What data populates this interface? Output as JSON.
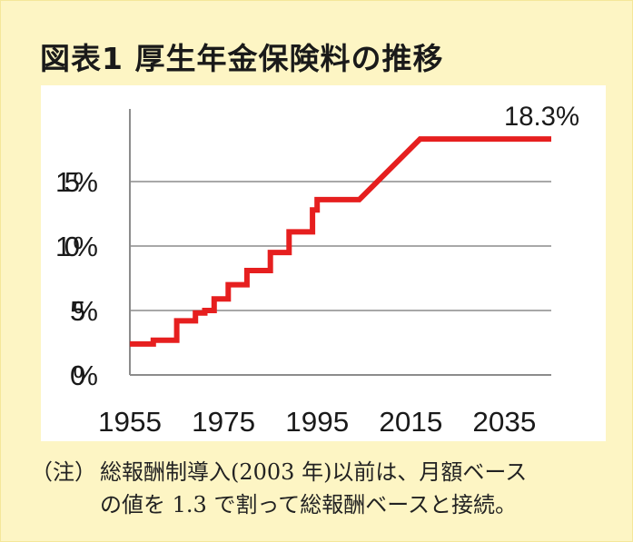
{
  "title": "図表1 厚生年金保険料の推移",
  "note": {
    "label": "（注）",
    "line1": "総報酬制導入(2003 年)以前は、月額ベース",
    "line2": "の値を 1.3 で割って総報酬ベースと接続。"
  },
  "colors": {
    "line": "#e61f1f",
    "grid": "#8c8c8c",
    "background": "#fdf5c4",
    "plot": "#ffffff"
  },
  "chart_data": {
    "type": "line",
    "title": "図表1 厚生年金保険料の推移",
    "xlabel": "",
    "ylabel": "",
    "xlim": [
      1955,
      2045
    ],
    "ylim": [
      0,
      20
    ],
    "x_ticks": [
      1955,
      1975,
      1995,
      2015,
      2035
    ],
    "x_tick_labels": [
      "1955",
      "1975",
      "1995",
      "2015",
      "2035"
    ],
    "y_ticks": [
      0,
      5,
      10,
      15
    ],
    "y_tick_labels": [
      "0%",
      "5%",
      "10%",
      "15%"
    ],
    "grid": "horizontal",
    "annotation": {
      "text": "18.3%",
      "x": 2045,
      "y": 18.3
    },
    "step_points": [
      [
        1955,
        2.4
      ],
      [
        1960,
        2.4
      ],
      [
        1960,
        2.7
      ],
      [
        1965,
        2.7
      ],
      [
        1965,
        4.2
      ],
      [
        1969,
        4.2
      ],
      [
        1969,
        4.8
      ],
      [
        1971,
        4.8
      ],
      [
        1971,
        5.0
      ],
      [
        1973,
        5.0
      ],
      [
        1973,
        5.9
      ],
      [
        1976,
        5.9
      ],
      [
        1976,
        7.0
      ],
      [
        1980,
        7.0
      ],
      [
        1980,
        8.1
      ],
      [
        1985,
        8.1
      ],
      [
        1985,
        9.5
      ],
      [
        1989,
        9.5
      ],
      [
        1989,
        11.1
      ],
      [
        1994,
        11.1
      ],
      [
        1994,
        12.8
      ],
      [
        1995,
        12.8
      ],
      [
        1995,
        13.6
      ],
      [
        2004,
        13.6
      ],
      [
        2017,
        18.3
      ],
      [
        2045,
        18.3
      ]
    ]
  }
}
